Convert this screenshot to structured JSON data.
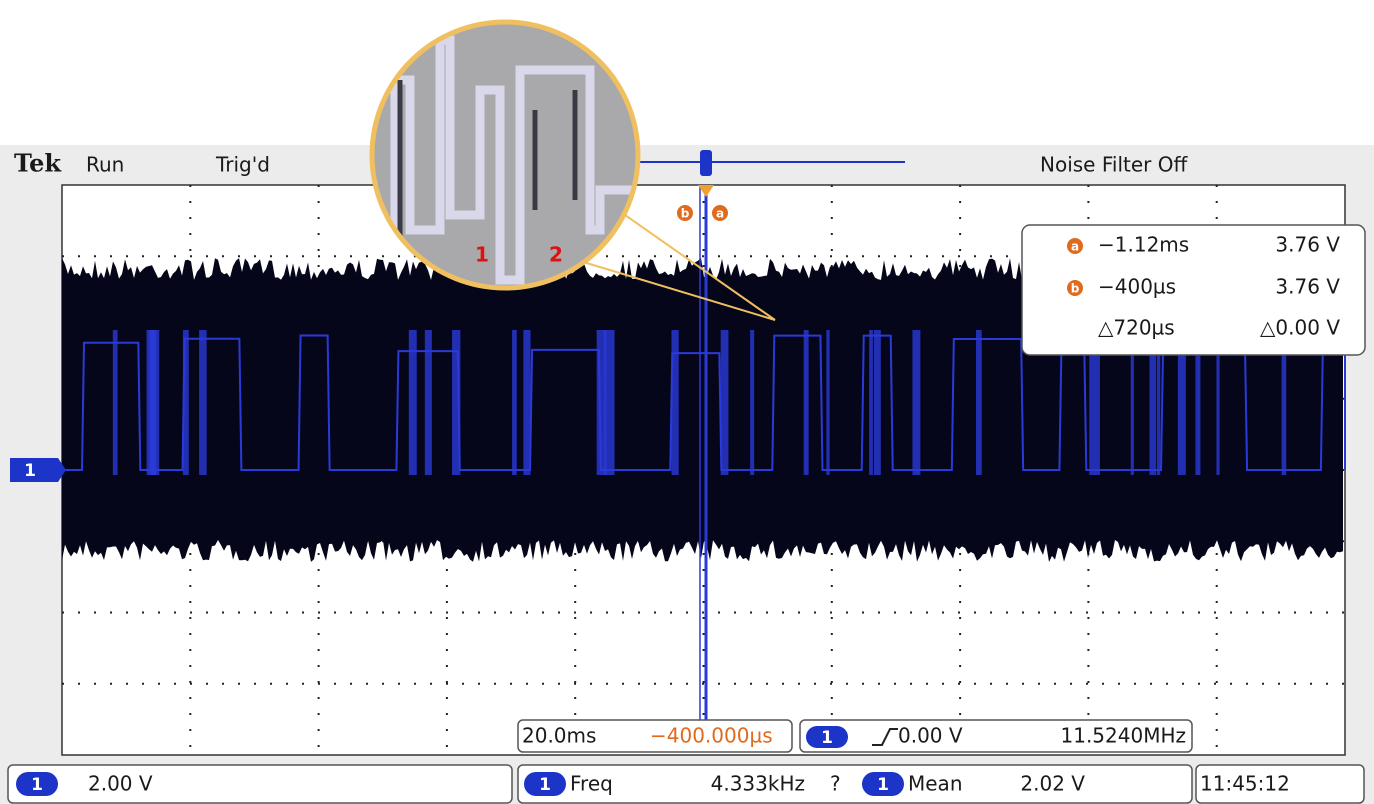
{
  "header": {
    "brand": "Tek",
    "status": "Run",
    "trigger_state": "Trig'd",
    "noise_filter": "Noise Filter Off"
  },
  "cursors": {
    "a": {
      "marker": "a",
      "time": "−1.12ms",
      "voltage": "3.76 V"
    },
    "b": {
      "marker": "b",
      "time": "−400µs",
      "voltage": "3.76 V"
    },
    "delta": {
      "time": "△720µs",
      "voltage": "△0.00 V"
    }
  },
  "zoom_labels": [
    "1",
    "2"
  ],
  "channel_marker": "1",
  "timebase": {
    "scale": "20.0ms",
    "position": "−400.000µs",
    "trigger_channel": "1",
    "trigger_level": "0.00 V",
    "sample_rate": "11.5240MHz"
  },
  "status_bar": {
    "channel": "1",
    "volts_per_div": "2.00 V",
    "measurements": [
      {
        "channel": "1",
        "name": "Freq",
        "value": "4.333kHz",
        "flag": "?"
      },
      {
        "channel": "1",
        "name": "Mean",
        "value": "2.02 V"
      }
    ],
    "clock": "11:45:12"
  }
}
